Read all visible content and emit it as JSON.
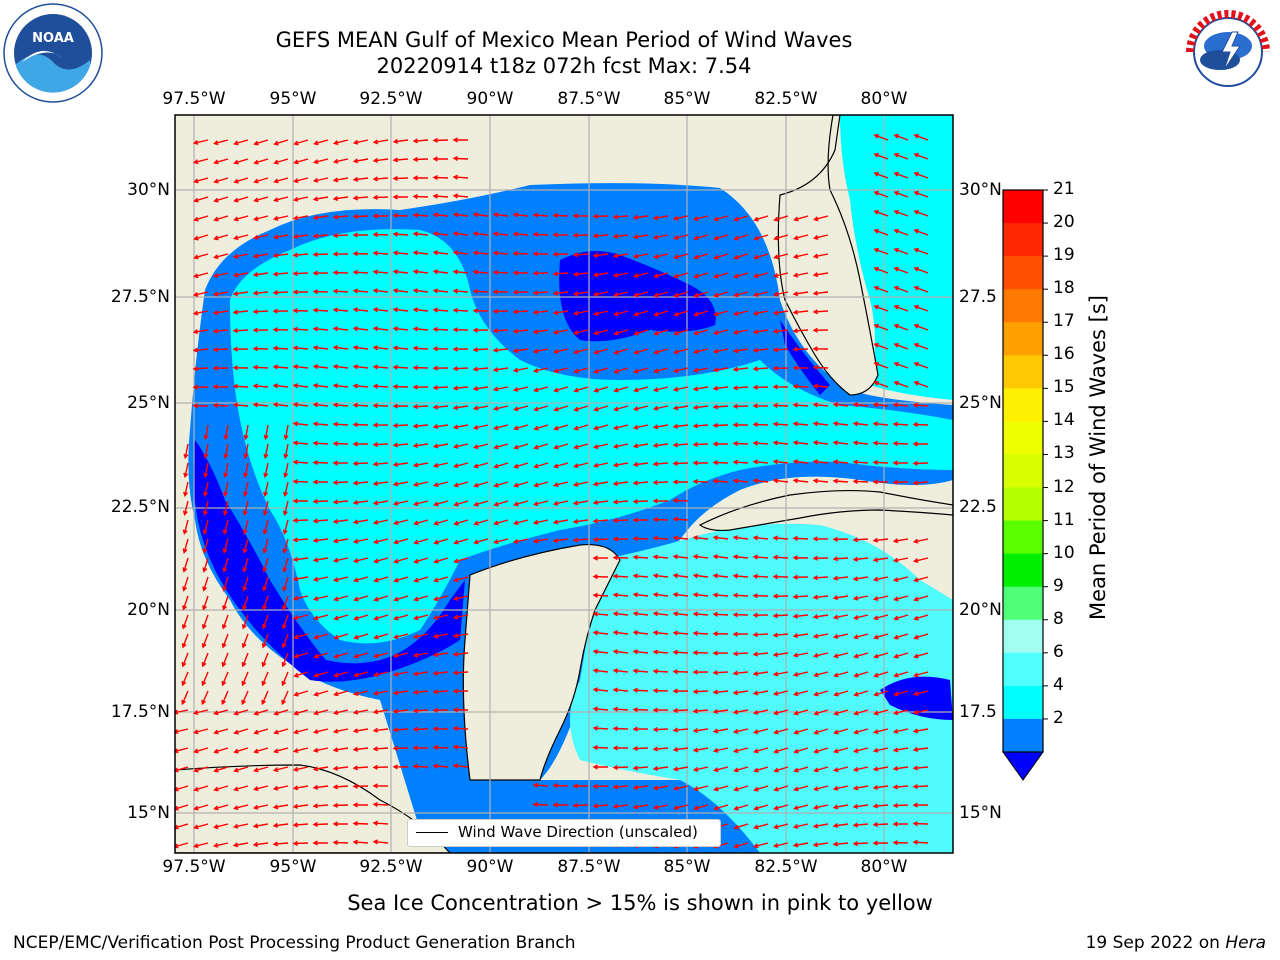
{
  "title": {
    "line1": "GEFS MEAN Gulf of Mexico Mean Period of Wind Waves",
    "line2": "20220914 t18z 072h fcst   Max: 7.54"
  },
  "logos": {
    "left": {
      "text": "NOAA",
      "ring_text": "NATIONAL OCEANIC AND ATMOSPHERIC ADMINISTRATION · U.S. DEPARTMENT OF COMMERCE",
      "color": "#1f4e9a"
    },
    "right": {
      "ring_text": "NATIONAL WEATHER SERVICE",
      "color": "#e0121b"
    }
  },
  "map": {
    "lon_ticks": [
      "97.5°W",
      "95°W",
      "92.5°W",
      "90°W",
      "87.5°W",
      "85°W",
      "82.5°W",
      "80°W"
    ],
    "lat_ticks_left": [
      "30°N",
      "27.5°N",
      "25°N",
      "22.5°N",
      "20°N",
      "17.5°N",
      "15°N"
    ],
    "lat_ticks_right": [
      "30°N",
      "27.5",
      "25°N",
      "22.5",
      "20°N",
      "17.5",
      "15°N"
    ],
    "legend_label": "Wind Wave Direction (unscaled)",
    "land_color": "#efeedc",
    "arrow_color": "#ff0000",
    "field_colors": {
      "deep": "#0000ff",
      "mid": "#0080ff",
      "light": "#00ffff",
      "pale": "#4ffbfb"
    }
  },
  "colorbar": {
    "label": "Mean Period of Wind Waves [s]",
    "ticks": [
      "21",
      "20",
      "19",
      "18",
      "17",
      "16",
      "15",
      "14",
      "13",
      "12",
      "11",
      "10",
      "9",
      "8",
      "6",
      "4",
      "2"
    ],
    "colors_top_to_bottom": [
      "#ff0000",
      "#ff2800",
      "#ff5000",
      "#ff7800",
      "#ffa000",
      "#ffc800",
      "#fff000",
      "#f0ff00",
      "#d7ff00",
      "#b4ff00",
      "#5aff00",
      "#00ee00",
      "#50ff78",
      "#a0fff0",
      "#50ffff",
      "#00ffff",
      "#0080ff"
    ],
    "under_color": "#0000ff"
  },
  "footer": {
    "note": "Sea Ice Concentration > 15% is shown in pink to yellow",
    "credit_left": "NCEP/EMC/Verification Post Processing Product Generation Branch",
    "credit_date": "19 Sep 2022 on ",
    "credit_host": "Hera"
  }
}
